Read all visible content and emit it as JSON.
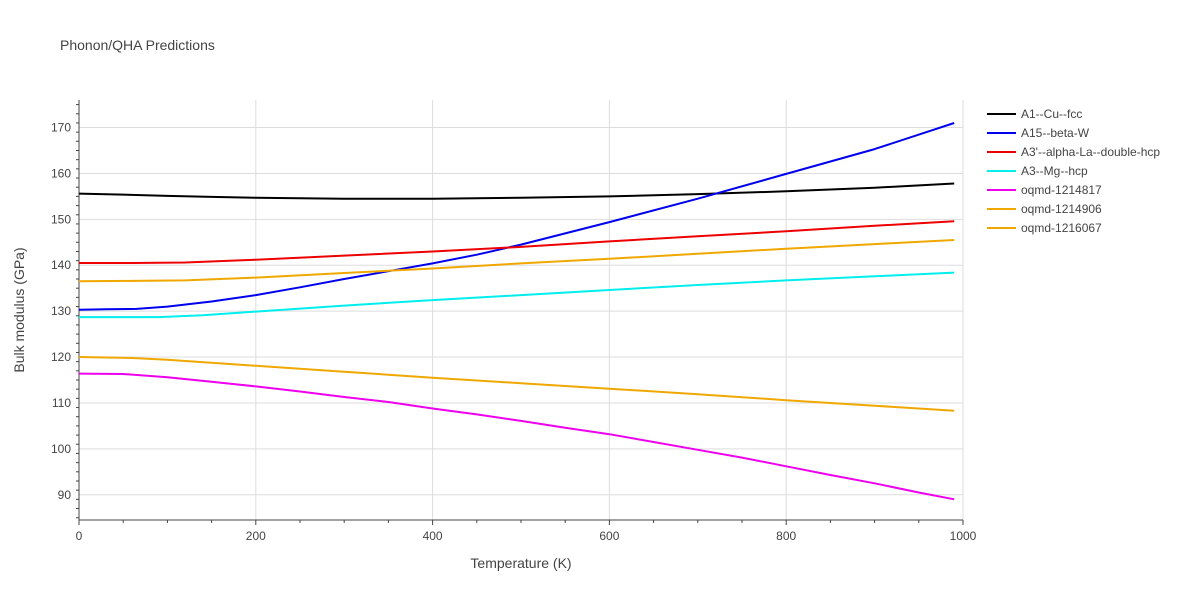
{
  "chart_data": {
    "type": "line",
    "title": "Phonon/QHA Predictions",
    "xlabel": "Temperature (K)",
    "ylabel": "Bulk modulus (GPa)",
    "xlim": [
      0,
      1000
    ],
    "ylim": [
      84.5,
      176
    ],
    "xticks": [
      0,
      200,
      400,
      600,
      800,
      1000
    ],
    "yticks": [
      90,
      100,
      110,
      120,
      130,
      140,
      150,
      160,
      170
    ],
    "grid": true,
    "legend_position": "right",
    "series": [
      {
        "name": "A1--Cu--fcc",
        "color": "#000000",
        "x": [
          0,
          50,
          100,
          150,
          200,
          300,
          350,
          400,
          500,
          600,
          700,
          800,
          900,
          990
        ],
        "y": [
          155.6,
          155.4,
          155.1,
          154.9,
          154.7,
          154.5,
          154.5,
          154.5,
          154.7,
          155.0,
          155.5,
          156.1,
          156.9,
          157.8
        ]
      },
      {
        "name": "A15--beta-W",
        "color": "#0000ee",
        "x": [
          0,
          30,
          65,
          100,
          150,
          200,
          250,
          300,
          350,
          400,
          450,
          500,
          600,
          700,
          800,
          900,
          990
        ],
        "y": [
          130.3,
          130.4,
          130.5,
          131.0,
          132.1,
          133.5,
          135.2,
          137.0,
          138.7,
          140.4,
          142.3,
          144.5,
          149.4,
          154.5,
          159.9,
          165.3,
          171.0
        ]
      },
      {
        "name": "A3'--alpha-La--double-hcp",
        "color": "#ee0000",
        "x": [
          0,
          60,
          120,
          200,
          300,
          400,
          500,
          600,
          700,
          800,
          900,
          990
        ],
        "y": [
          140.5,
          140.5,
          140.6,
          141.2,
          142.1,
          143.0,
          144.0,
          145.2,
          146.3,
          147.4,
          148.6,
          149.6
        ]
      },
      {
        "name": "A3--Mg--hcp",
        "color": "#00eeee",
        "x": [
          0,
          40,
          90,
          140,
          200,
          300,
          400,
          500,
          600,
          700,
          800,
          900,
          990
        ],
        "y": [
          128.7,
          128.7,
          128.7,
          129.1,
          129.9,
          131.2,
          132.4,
          133.5,
          134.6,
          135.7,
          136.7,
          137.6,
          138.4
        ]
      },
      {
        "name": "oqmd-1214817",
        "color": "#ee00ee",
        "x": [
          0,
          50,
          100,
          150,
          200,
          250,
          300,
          350,
          400,
          450,
          500,
          550,
          600,
          650,
          700,
          750,
          800,
          850,
          900,
          950,
          990
        ],
        "y": [
          116.4,
          116.3,
          115.6,
          114.6,
          113.6,
          112.5,
          111.3,
          110.2,
          108.8,
          107.5,
          106.1,
          104.6,
          103.2,
          101.5,
          99.8,
          98.1,
          96.2,
          94.3,
          92.5,
          90.5,
          89.0
        ]
      },
      {
        "name": "oqmd-1214906",
        "color": "#f0a800",
        "x": [
          0,
          60,
          100,
          200,
          300,
          400,
          500,
          600,
          700,
          800,
          900,
          990
        ],
        "y": [
          120.0,
          119.8,
          119.4,
          118.1,
          116.8,
          115.5,
          114.3,
          113.1,
          111.9,
          110.6,
          109.4,
          108.3
        ]
      },
      {
        "name": "oqmd-1216067",
        "color": "#f0a800",
        "x": [
          0,
          60,
          120,
          200,
          300,
          400,
          500,
          600,
          700,
          800,
          900,
          990
        ],
        "y": [
          136.5,
          136.6,
          136.7,
          137.3,
          138.3,
          139.3,
          140.4,
          141.4,
          142.5,
          143.6,
          144.6,
          145.5
        ]
      }
    ]
  }
}
